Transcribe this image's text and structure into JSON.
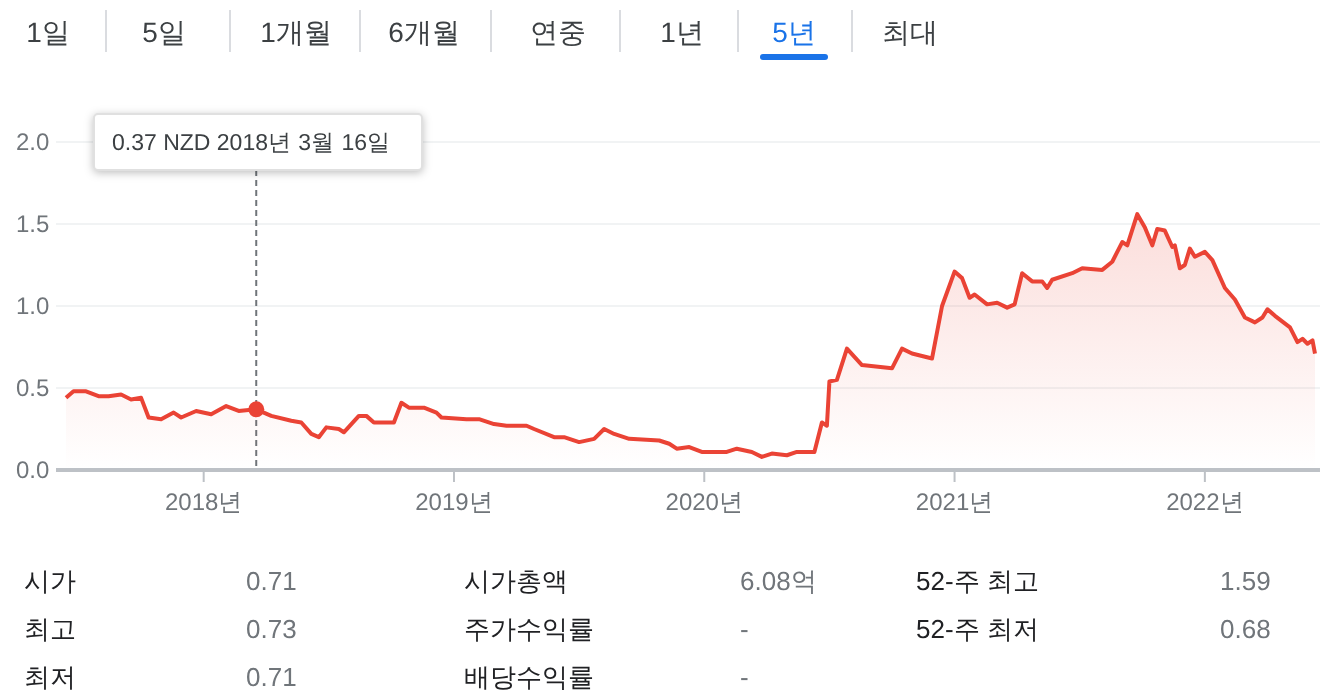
{
  "chart_data": {
    "type": "area",
    "x": [
      2017.45,
      2017.48,
      2017.53,
      2017.58,
      2017.62,
      2017.67,
      2017.71,
      2017.75,
      2017.78,
      2017.83,
      2017.88,
      2017.91,
      2017.97,
      2018.03,
      2018.09,
      2018.14,
      2018.21,
      2018.27,
      2018.35,
      2018.39,
      2018.43,
      2018.46,
      2018.49,
      2018.54,
      2018.56,
      2018.62,
      2018.65,
      2018.68,
      2018.76,
      2018.79,
      2018.82,
      2018.88,
      2018.93,
      2018.95,
      2019.05,
      2019.1,
      2019.16,
      2019.21,
      2019.29,
      2019.32,
      2019.4,
      2019.44,
      2019.5,
      2019.56,
      2019.6,
      2019.64,
      2019.7,
      2019.82,
      2019.86,
      2019.89,
      2019.94,
      2019.99,
      2020.09,
      2020.13,
      2020.19,
      2020.23,
      2020.27,
      2020.33,
      2020.37,
      2020.44,
      2020.47,
      2020.49,
      2020.5,
      2020.53,
      2020.57,
      2020.63,
      2020.75,
      2020.79,
      2020.83,
      2020.91,
      2020.95,
      2021.0,
      2021.03,
      2021.06,
      2021.08,
      2021.13,
      2021.17,
      2021.21,
      2021.24,
      2021.27,
      2021.31,
      2021.35,
      2021.37,
      2021.39,
      2021.47,
      2021.51,
      2021.59,
      2021.63,
      2021.67,
      2021.69,
      2021.73,
      2021.76,
      2021.79,
      2021.81,
      2021.84,
      2021.87,
      2021.88,
      2021.9,
      2021.92,
      2021.94,
      2021.96,
      2022.0,
      2022.03,
      2022.08,
      2022.12,
      2022.16,
      2022.2,
      2022.23,
      2022.25,
      2022.28,
      2022.34,
      2022.37,
      2022.39,
      2022.41,
      2022.43,
      2022.44
    ],
    "series": [
      {
        "color": "#ea4335",
        "values": [
          0.44,
          0.48,
          0.48,
          0.45,
          0.45,
          0.46,
          0.43,
          0.44,
          0.32,
          0.31,
          0.35,
          0.32,
          0.36,
          0.34,
          0.39,
          0.36,
          0.37,
          0.33,
          0.3,
          0.29,
          0.22,
          0.2,
          0.26,
          0.25,
          0.23,
          0.33,
          0.33,
          0.29,
          0.29,
          0.41,
          0.38,
          0.38,
          0.35,
          0.32,
          0.31,
          0.31,
          0.28,
          0.27,
          0.27,
          0.25,
          0.2,
          0.2,
          0.17,
          0.19,
          0.25,
          0.22,
          0.19,
          0.18,
          0.16,
          0.13,
          0.14,
          0.11,
          0.11,
          0.13,
          0.11,
          0.08,
          0.1,
          0.09,
          0.11,
          0.11,
          0.29,
          0.27,
          0.54,
          0.55,
          0.74,
          0.64,
          0.62,
          0.74,
          0.71,
          0.68,
          1.0,
          1.21,
          1.17,
          1.05,
          1.07,
          1.01,
          1.02,
          0.99,
          1.01,
          1.2,
          1.15,
          1.15,
          1.11,
          1.16,
          1.2,
          1.23,
          1.22,
          1.27,
          1.39,
          1.37,
          1.56,
          1.48,
          1.37,
          1.47,
          1.46,
          1.36,
          1.37,
          1.23,
          1.25,
          1.35,
          1.3,
          1.33,
          1.28,
          1.11,
          1.04,
          0.93,
          0.9,
          0.93,
          0.98,
          0.94,
          0.87,
          0.78,
          0.8,
          0.77,
          0.79,
          0.71
        ]
      },
      {
        "type": "scatter",
        "x": [
          2018.21
        ],
        "values": [
          0.37
        ],
        "color": "#ea4335",
        "marker": "circle"
      }
    ],
    "xlim": [
      2017.41,
      2022.46
    ],
    "xticks": [
      {
        "value": 2018,
        "label": "2018년"
      },
      {
        "value": 2019,
        "label": "2019년"
      },
      {
        "value": 2020,
        "label": "2020년"
      },
      {
        "value": 2021,
        "label": "2021년"
      },
      {
        "value": 2022,
        "label": "2022년"
      }
    ],
    "ylim": [
      0,
      2
    ],
    "yticks": [
      {
        "value": 0,
        "label": "0.0"
      },
      {
        "value": 0.5,
        "label": "0.5"
      },
      {
        "value": 1,
        "label": "1.0"
      },
      {
        "value": 1.5,
        "label": "1.5"
      },
      {
        "value": 2,
        "label": "2.0"
      }
    ],
    "grid": "y",
    "ref_lines": [
      {
        "axis": "x",
        "value": 2018.21,
        "color": "#70757a",
        "line_style": "dashed"
      }
    ],
    "annotations": [
      "1일",
      "5일",
      "1개월",
      "6개월",
      "연중",
      "1년",
      "5년",
      "최대",
      "0.37 NZD  2018년 3월 16일",
      "시가",
      "0.71",
      "시가총액",
      "6.08억",
      "52-주 최고",
      "1.59",
      "최고",
      "0.73",
      "주가수익률",
      "-",
      "52-주 최저",
      "0.68",
      "최저",
      "0.71",
      "배당수익률",
      "-"
    ]
  }
}
